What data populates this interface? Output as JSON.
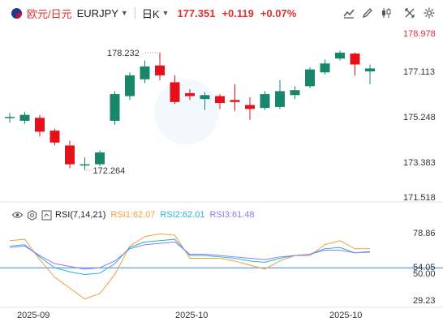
{
  "toolbar": {
    "pair_cn": "欧元/日元",
    "pair_code": "EURJPY",
    "period": "日K",
    "price": "177.351",
    "change": "+0.119",
    "change_pct": "+0.07%"
  },
  "rsi": {
    "name": "RSI(7,14,21)",
    "rsi1": "RSI1:62.07",
    "rsi2": "RSI2:62.01",
    "rsi3": "RSI3:61.48",
    "ticks": [
      "78.86",
      "54.05",
      "50.00",
      "29.23"
    ]
  },
  "colors": {
    "up": "#17866a",
    "down": "#e5101a",
    "rsi1": "#f59f3a",
    "rsi2": "#22b8cf",
    "rsi3": "#9775fa",
    "rsi_mid": "#3b82f6"
  },
  "chart_data": {
    "type": "candlestick",
    "ylim": [
      170.9,
      179.6
    ],
    "y_ticks": [
      "178.978",
      "177.113",
      "175.248",
      "173.383",
      "171.518"
    ],
    "x_ticks": [
      "2025-09",
      "2025-10",
      "2025-10"
    ],
    "annotations": {
      "high_label": "178.232",
      "low_label": "172.264"
    },
    "candles": [
      {
        "o": 175.0,
        "c": 175.0,
        "h": 175.2,
        "l": 174.7
      },
      {
        "o": 174.8,
        "c": 175.1,
        "h": 175.25,
        "l": 174.65
      },
      {
        "o": 174.95,
        "c": 174.25,
        "h": 175.1,
        "l": 174.0
      },
      {
        "o": 174.3,
        "c": 173.7,
        "h": 174.4,
        "l": 173.55
      },
      {
        "o": 173.55,
        "c": 172.6,
        "h": 173.8,
        "l": 172.4
      },
      {
        "o": 172.55,
        "c": 172.6,
        "h": 172.95,
        "l": 172.3
      },
      {
        "o": 172.6,
        "c": 173.2,
        "h": 173.3,
        "l": 172.5
      },
      {
        "o": 174.8,
        "c": 176.15,
        "h": 176.3,
        "l": 174.6
      },
      {
        "o": 176.05,
        "c": 177.1,
        "h": 177.25,
        "l": 175.85
      },
      {
        "o": 176.9,
        "c": 177.55,
        "h": 177.85,
        "l": 176.7
      },
      {
        "o": 177.6,
        "c": 177.1,
        "h": 178.25,
        "l": 176.85
      },
      {
        "o": 176.75,
        "c": 175.75,
        "h": 177.1,
        "l": 175.65
      },
      {
        "o": 176.2,
        "c": 176.05,
        "h": 176.4,
        "l": 175.85
      },
      {
        "o": 175.9,
        "c": 176.1,
        "h": 176.25,
        "l": 175.35
      },
      {
        "o": 176.05,
        "c": 175.7,
        "h": 176.15,
        "l": 175.4
      },
      {
        "o": 175.85,
        "c": 175.75,
        "h": 176.65,
        "l": 175.3
      },
      {
        "o": 175.6,
        "c": 175.4,
        "h": 176.0,
        "l": 174.85
      },
      {
        "o": 175.45,
        "c": 176.15,
        "h": 176.3,
        "l": 175.35
      },
      {
        "o": 175.5,
        "c": 176.3,
        "h": 176.85,
        "l": 175.4
      },
      {
        "o": 176.1,
        "c": 176.35,
        "h": 176.55,
        "l": 175.9
      },
      {
        "o": 176.55,
        "c": 177.4,
        "h": 177.5,
        "l": 176.45
      },
      {
        "o": 177.25,
        "c": 177.7,
        "h": 177.9,
        "l": 177.15
      },
      {
        "o": 177.95,
        "c": 178.25,
        "h": 178.35,
        "l": 177.85
      },
      {
        "o": 178.2,
        "c": 177.65,
        "h": 178.25,
        "l": 177.1
      },
      {
        "o": 177.3,
        "c": 177.45,
        "h": 177.65,
        "l": 176.65
      }
    ],
    "rsi_ylim": [
      22,
      86
    ],
    "rsi_series": [
      {
        "name": "RSI1",
        "values": [
          70,
          71,
          56,
          43,
          35,
          27,
          31,
          45,
          66,
          73,
          75,
          74,
          57,
          57,
          57,
          55,
          52,
          49,
          55,
          59,
          59,
          67,
          70,
          64,
          64
        ]
      },
      {
        "name": "RSI2",
        "values": [
          66,
          67,
          58,
          50,
          47,
          45,
          46,
          53,
          65,
          69,
          70,
          71,
          59,
          59,
          58,
          57,
          55,
          54,
          57,
          59,
          60,
          64,
          65,
          61,
          62
        ]
      },
      {
        "name": "RSI3",
        "values": [
          65,
          66,
          59,
          53,
          51,
          49,
          50,
          55,
          64,
          67,
          68,
          69,
          60,
          60,
          59,
          58,
          57,
          56,
          58,
          59,
          60,
          63,
          63,
          61,
          61.5
        ]
      }
    ]
  }
}
